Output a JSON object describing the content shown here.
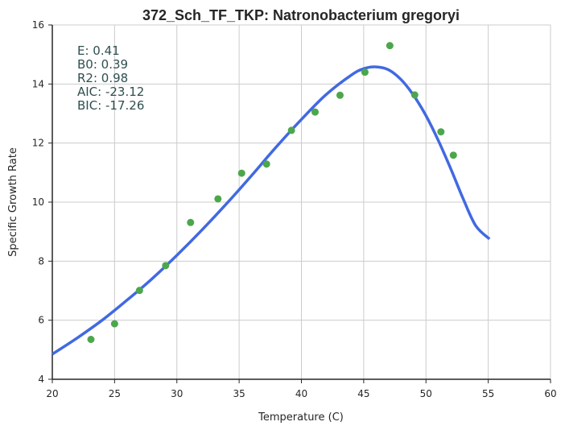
{
  "chart_data": {
    "type": "scatter",
    "title": "372_Sch_TF_TKP: Natronobacterium gregoryi",
    "xlabel": "Temperature (C)",
    "ylabel": "Specific Growth Rate",
    "xlim": [
      20,
      60
    ],
    "ylim": [
      4,
      16
    ],
    "xticks": [
      "20",
      "25",
      "30",
      "35",
      "40",
      "45",
      "50",
      "55",
      "60"
    ],
    "yticks": [
      "4",
      "6",
      "8",
      "10",
      "12",
      "14",
      "16"
    ],
    "grid": true,
    "annotations": [
      "E:  0.41",
      "B0:  0.39",
      "R2:  0.98",
      "AIC: -23.12",
      "BIC: -17.26"
    ],
    "series": [
      {
        "type": "scatter",
        "color": "#4ca64c",
        "x": [
          23.1,
          25.0,
          27.0,
          29.1,
          31.1,
          33.3,
          35.2,
          37.2,
          39.2,
          41.1,
          43.1,
          45.1,
          47.1,
          49.1,
          51.2,
          52.2
        ],
        "y": [
          5.35,
          5.88,
          7.01,
          7.85,
          9.31,
          10.11,
          10.98,
          11.29,
          12.43,
          13.05,
          13.62,
          14.4,
          15.3,
          13.63,
          12.38,
          11.59
        ]
      },
      {
        "type": "line",
        "color": "#4169e1",
        "x": [
          20,
          22,
          24,
          26,
          28,
          30,
          32,
          34,
          36,
          38,
          40,
          42,
          44,
          45,
          46,
          47,
          48,
          49,
          50,
          51,
          52,
          53,
          54,
          55.1
        ],
        "y": [
          4.85,
          5.4,
          6.0,
          6.68,
          7.4,
          8.2,
          9.05,
          9.95,
          10.9,
          11.88,
          12.8,
          13.65,
          14.3,
          14.52,
          14.58,
          14.48,
          14.15,
          13.62,
          12.93,
          12.08,
          11.12,
          10.1,
          9.2,
          8.75
        ]
      }
    ]
  }
}
